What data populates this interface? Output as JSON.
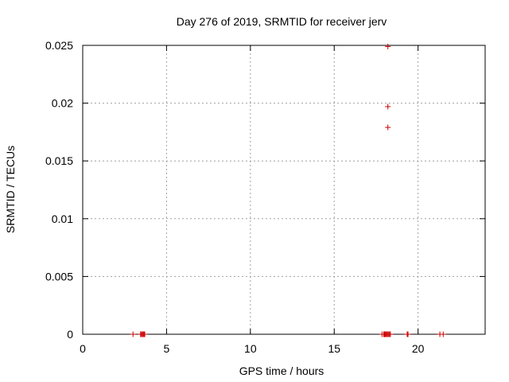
{
  "chart_data": {
    "type": "scatter",
    "title": "Day 276 of 2019, SRMTID for receiver jerv",
    "xlabel": "GPS time / hours",
    "ylabel": "SRMTID / TECUs",
    "xlim": [
      0,
      24
    ],
    "ylim": [
      0,
      0.025
    ],
    "xticks": [
      0,
      5,
      10,
      15,
      20
    ],
    "yticks": [
      0,
      0.005,
      0.01,
      0.015,
      0.02,
      0.025
    ],
    "xtick_labels": [
      "0",
      "5",
      "10",
      "15",
      "20"
    ],
    "ytick_labels": [
      "0",
      "0.005",
      "0.01",
      "0.015",
      "0.02",
      "0.025"
    ],
    "grid": true,
    "marker": "+",
    "series": [
      {
        "name": "SRMTID",
        "color": "#cc0000",
        "points": [
          [
            3.0,
            0
          ],
          [
            3.45,
            0
          ],
          [
            3.5,
            0
          ],
          [
            3.55,
            0
          ],
          [
            3.6,
            0
          ],
          [
            3.65,
            0
          ],
          [
            3.7,
            0
          ],
          [
            17.85,
            0
          ],
          [
            17.95,
            0
          ],
          [
            18.0,
            0
          ],
          [
            18.05,
            0
          ],
          [
            18.1,
            0
          ],
          [
            18.15,
            0
          ],
          [
            18.2,
            0
          ],
          [
            18.25,
            0
          ],
          [
            18.3,
            0
          ],
          [
            18.35,
            0
          ],
          [
            18.2,
            0.0249
          ],
          [
            18.2,
            0.0197
          ],
          [
            18.2,
            0.0179
          ],
          [
            19.35,
            0
          ],
          [
            19.4,
            0
          ],
          [
            21.3,
            0
          ],
          [
            21.5,
            0
          ]
        ]
      }
    ]
  }
}
